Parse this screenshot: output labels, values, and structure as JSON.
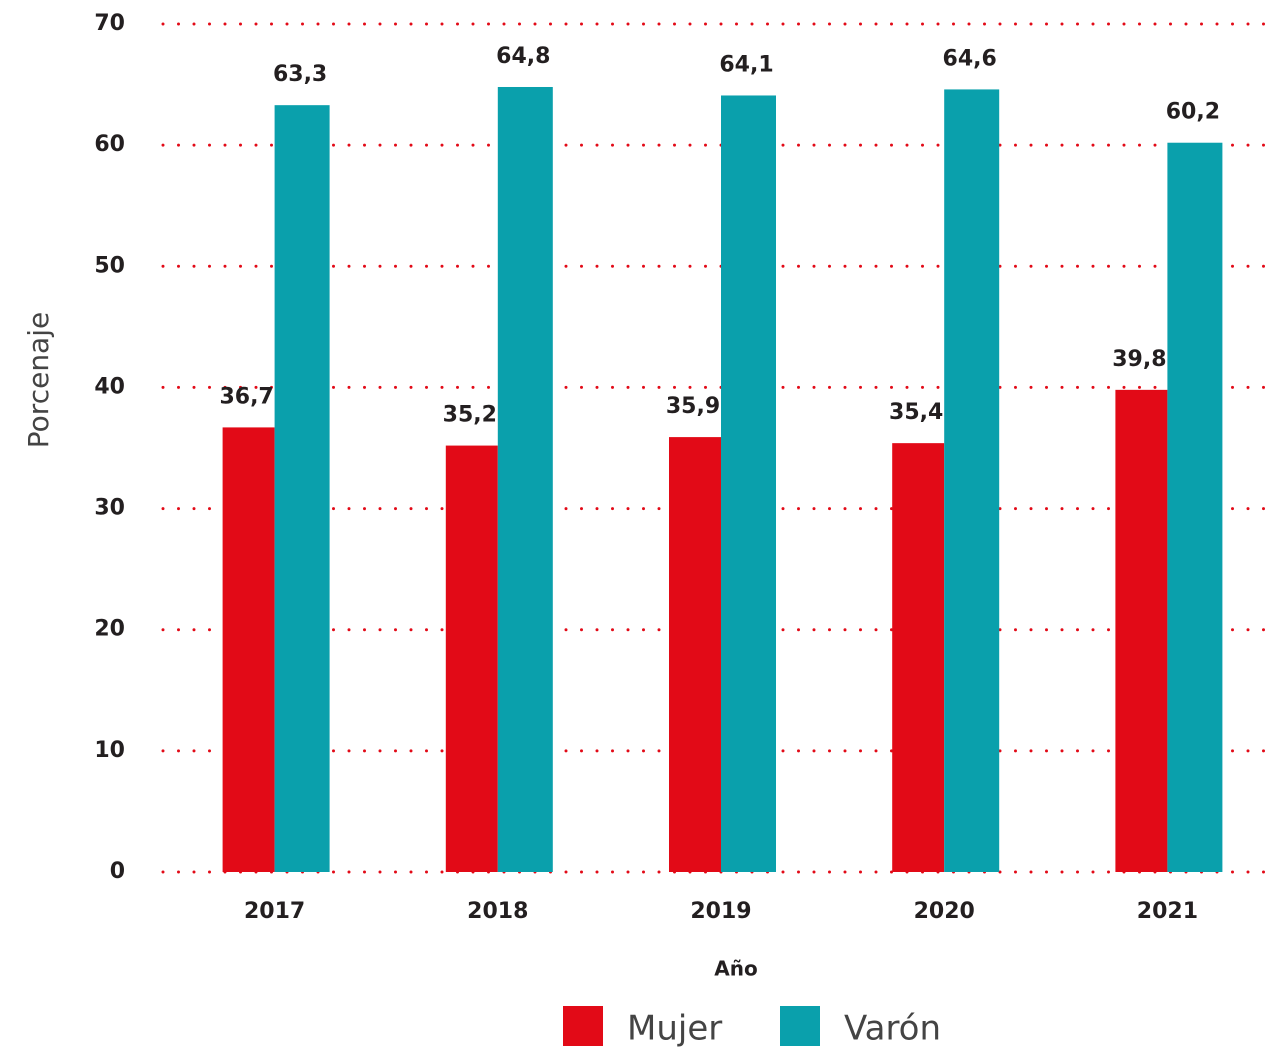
{
  "chart_data": {
    "type": "bar",
    "categories": [
      "2017",
      "2018",
      "2019",
      "2020",
      "2021"
    ],
    "series": [
      {
        "name": "Mujer",
        "color": "#e20a17",
        "values": [
          36.7,
          35.2,
          35.9,
          35.4,
          39.8
        ],
        "value_labels": [
          "36,7",
          "35,2",
          "35,9",
          "35,4",
          "39,8"
        ]
      },
      {
        "name": "Varón",
        "color": "#0aa0ac",
        "values": [
          63.3,
          64.8,
          64.1,
          64.6,
          60.2
        ],
        "value_labels": [
          "63,3",
          "64,8",
          "64,1",
          "64,6",
          "60,2"
        ]
      }
    ],
    "x_label": "Año",
    "y_label": "Porcenaje",
    "ylim": [
      0,
      70
    ],
    "yticks": [
      0,
      10,
      20,
      30,
      40,
      50,
      60,
      70
    ],
    "grid": true,
    "grid_color": "#e20a17",
    "legend": "bottom"
  }
}
